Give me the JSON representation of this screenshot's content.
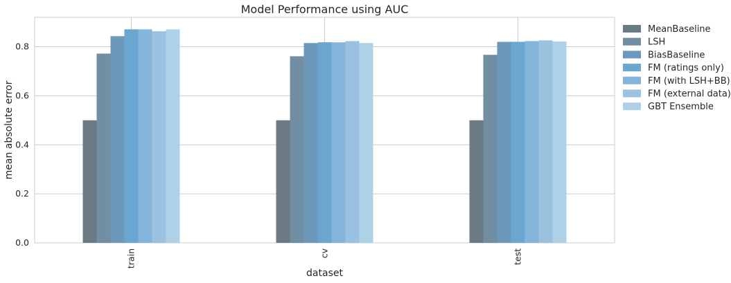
{
  "chart_data": {
    "type": "bar",
    "title": "Model Performance using AUC",
    "xlabel": "dataset",
    "ylabel": "mean absolute error",
    "categories": [
      "train",
      "cv",
      "test"
    ],
    "ylim": [
      0,
      0.92
    ],
    "yticks": [
      0.0,
      0.2,
      0.4,
      0.6,
      0.8
    ],
    "ytick_labels": [
      "0.0",
      "0.2",
      "0.4",
      "0.6",
      "0.8"
    ],
    "grid": true,
    "legend_position": "outside-right-top",
    "series": [
      {
        "name": "MeanBaseline",
        "color": "#6c7a84",
        "values": [
          0.5,
          0.5,
          0.5
        ]
      },
      {
        "name": "LSH",
        "color": "#728ea3",
        "values": [
          0.772,
          0.761,
          0.767
        ]
      },
      {
        "name": "BiasBaseline",
        "color": "#6c98b9",
        "values": [
          0.843,
          0.815,
          0.82
        ]
      },
      {
        "name": "FM (ratings only)",
        "color": "#6aa6cf",
        "values": [
          0.871,
          0.818,
          0.82
        ]
      },
      {
        "name": "FM (with LSH+BB)",
        "color": "#85b5da",
        "values": [
          0.871,
          0.818,
          0.823
        ]
      },
      {
        "name": "FM (external data)",
        "color": "#9ac2e0",
        "values": [
          0.863,
          0.823,
          0.826
        ]
      },
      {
        "name": "GBT Ensemble",
        "color": "#afd1e7",
        "values": [
          0.871,
          0.815,
          0.821
        ]
      }
    ]
  }
}
